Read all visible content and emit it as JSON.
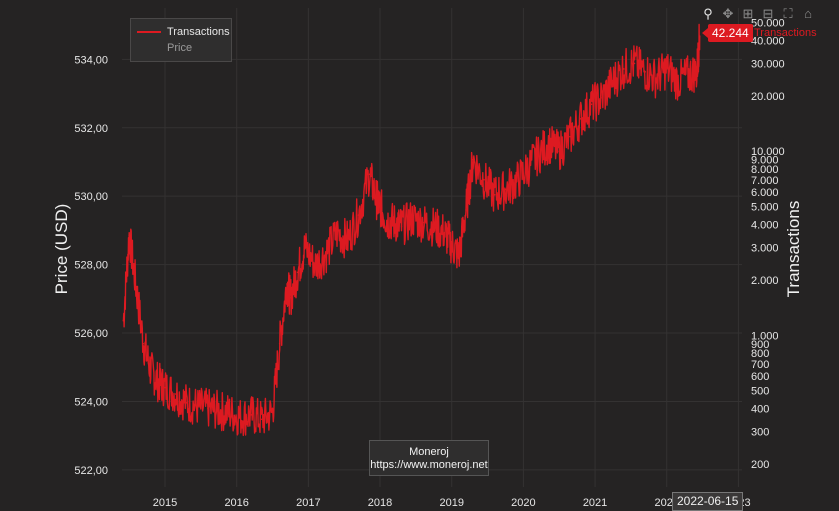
{
  "colors": {
    "series": "#dd1a21",
    "grid": "#343232",
    "background": "#252323",
    "text": "#e6e6e6"
  },
  "legend": {
    "items": [
      {
        "label": "Transactions",
        "active": true
      },
      {
        "label": "Price",
        "active": false
      }
    ]
  },
  "credit": {
    "name": "Moneroj",
    "url": "https://www.moneroj.net"
  },
  "toolbar": {
    "icons": [
      "zoom-icon",
      "pan-icon",
      "zoom-in-icon",
      "zoom-out-icon",
      "autoscale-icon",
      "reset-axes-icon"
    ]
  },
  "last_value": {
    "value": "42.244",
    "series": "Transactions"
  },
  "hover_date": "2022-06-15",
  "chart_data": {
    "type": "line",
    "title": "",
    "xlabel": "",
    "ylabel": "Price (USD)",
    "y2label": "Transactions",
    "x_ticks": [
      "2015",
      "2016",
      "2017",
      "2018",
      "2019",
      "2020",
      "2021",
      "2022",
      "2023"
    ],
    "x_range": [
      2014.4,
      2023.05
    ],
    "ylim": [
      521.5,
      535.5
    ],
    "y_ticks": [
      "522,00",
      "524,00",
      "526,00",
      "528,00",
      "530,00",
      "532,00",
      "534,00"
    ],
    "y_tick_values": [
      522,
      524,
      526,
      528,
      530,
      532,
      534
    ],
    "y2_scale": "log",
    "y2lim": [
      150,
      60000
    ],
    "y2_ticks": [
      {
        "label": "200",
        "value": 200
      },
      {
        "label": "300",
        "value": 300
      },
      {
        "label": "400",
        "value": 400
      },
      {
        "label": "500",
        "value": 500
      },
      {
        "label": "600",
        "value": 600
      },
      {
        "label": "700",
        "value": 700
      },
      {
        "label": "800",
        "value": 800
      },
      {
        "label": "900",
        "value": 900
      },
      {
        "label": "1.000",
        "value": 1000
      },
      {
        "label": "2.000",
        "value": 2000
      },
      {
        "label": "3.000",
        "value": 3000
      },
      {
        "label": "4.000",
        "value": 4000
      },
      {
        "label": "5.000",
        "value": 5000
      },
      {
        "label": "6.000",
        "value": 6000
      },
      {
        "label": "7.000",
        "value": 7000
      },
      {
        "label": "8.000",
        "value": 8000
      },
      {
        "label": "9.000",
        "value": 9000
      },
      {
        "label": "10.000",
        "value": 10000
      },
      {
        "label": "20.000",
        "value": 20000
      },
      {
        "label": "30.000",
        "value": 30000
      },
      {
        "label": "40.000",
        "value": 40000
      },
      {
        "label": "50.000",
        "value": 50000
      }
    ],
    "grid": true,
    "legend_position": "top-left",
    "series": [
      {
        "name": "Transactions",
        "axis": "y2",
        "x": [
          2014.42,
          2014.5,
          2014.6,
          2014.7,
          2014.8,
          2014.9,
          2015.0,
          2015.15,
          2015.3,
          2015.45,
          2015.6,
          2015.75,
          2015.9,
          2016.05,
          2016.2,
          2016.35,
          2016.5,
          2016.6,
          2016.7,
          2016.75,
          2016.85,
          2016.95,
          2017.1,
          2017.25,
          2017.4,
          2017.55,
          2017.7,
          2017.85,
          2017.95,
          2018.0,
          2018.1,
          2018.2,
          2018.3,
          2018.45,
          2018.6,
          2018.75,
          2018.9,
          2019.0,
          2019.1,
          2019.2,
          2019.3,
          2019.45,
          2019.6,
          2019.75,
          2019.9,
          2020.05,
          2020.2,
          2020.35,
          2020.5,
          2020.65,
          2020.8,
          2020.95,
          2021.1,
          2021.25,
          2021.4,
          2021.55,
          2021.7,
          2021.85,
          2022.0,
          2022.15,
          2022.3,
          2022.42,
          2022.46
        ],
        "values": [
          1200,
          3500,
          1800,
          900,
          650,
          560,
          520,
          480,
          430,
          410,
          400,
          390,
          380,
          360,
          370,
          350,
          380,
          900,
          1900,
          1600,
          2200,
          3000,
          2400,
          2800,
          3600,
          3300,
          4500,
          7500,
          5500,
          5000,
          4200,
          4100,
          3900,
          4300,
          4100,
          3900,
          3600,
          3100,
          2700,
          4800,
          9000,
          7000,
          5800,
          6200,
          6800,
          8000,
          9500,
          11000,
          10000,
          12000,
          15000,
          18000,
          19500,
          24000,
          28000,
          30000,
          27000,
          25000,
          28000,
          24000,
          26000,
          27000,
          42244
        ]
      },
      {
        "name": "Price",
        "axis": "y",
        "visible": false,
        "x": [],
        "values": []
      }
    ]
  }
}
